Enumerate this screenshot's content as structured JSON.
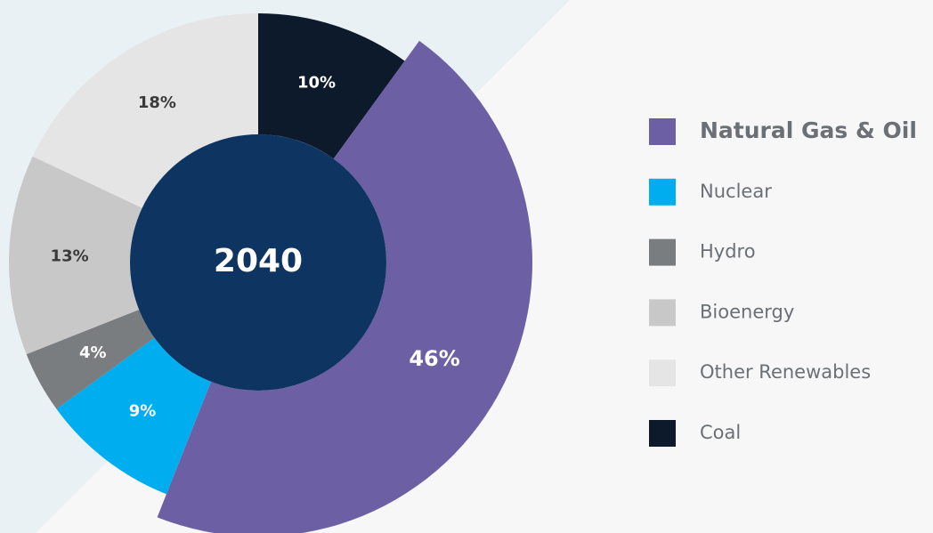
{
  "chart_data": {
    "type": "donut",
    "center_label": "2040",
    "series": [
      {
        "name": "Natural Gas & Oil",
        "color": "#6d5fa4",
        "value": 46,
        "value_label": "46%"
      },
      {
        "name": "Nuclear",
        "color": "#00aeef",
        "value": 9,
        "value_label": "9%"
      },
      {
        "name": "Hydro",
        "color": "#7a7d80",
        "value": 4,
        "value_label": "4%"
      },
      {
        "name": "Bioenergy",
        "color": "#c8c8c8",
        "value": 13,
        "value_label": "13%"
      },
      {
        "name": "Other Renewables",
        "color": "#e5e5e5",
        "value": 18,
        "value_label": "18%"
      },
      {
        "name": "Coal",
        "color": "#0d1a2b",
        "value": 10,
        "value_label": "10%"
      }
    ],
    "center_color": "#0e3562"
  }
}
